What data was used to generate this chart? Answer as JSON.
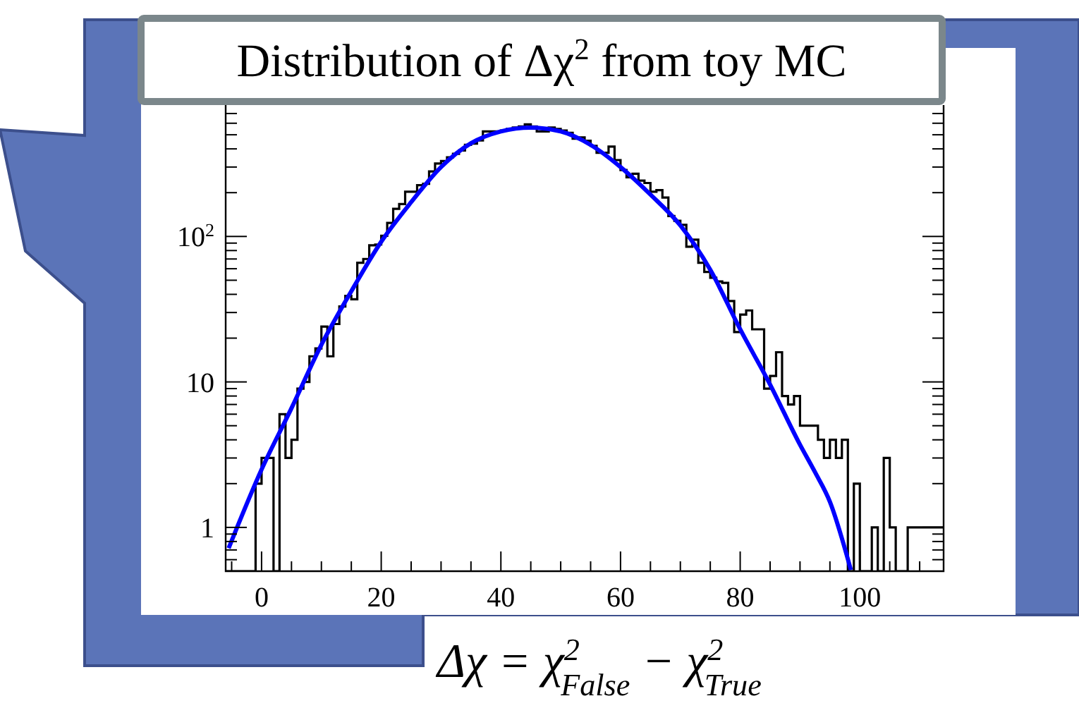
{
  "chart_data": {
    "type": "histogram",
    "title": "Distribution of Δχ$^{2}$ from toy MC",
    "annotations": [
      "Δχ = χ$^{2}$$_{False}$ − χ$^{2}$$_{True}$"
    ],
    "log": "y",
    "xlim": [
      -6,
      114
    ],
    "ylim": [
      0.5,
      800
    ],
    "xticks": [
      {
        "value": -5,
        "label": null
      },
      0,
      {
        "value": 5,
        "label": null
      },
      {
        "value": 10,
        "label": null
      },
      {
        "value": 15,
        "label": null
      },
      20,
      {
        "value": 25,
        "label": null
      },
      {
        "value": 30,
        "label": null
      },
      {
        "value": 35,
        "label": null
      },
      40,
      {
        "value": 45,
        "label": null
      },
      {
        "value": 50,
        "label": null
      },
      {
        "value": 55,
        "label": null
      },
      60,
      {
        "value": 65,
        "label": null
      },
      {
        "value": 70,
        "label": null
      },
      {
        "value": 75,
        "label": null
      },
      80,
      {
        "value": 85,
        "label": null
      },
      {
        "value": 90,
        "label": null
      },
      {
        "value": 95,
        "label": null
      },
      100,
      {
        "value": 105,
        "label": null
      },
      {
        "value": 110,
        "label": null
      }
    ],
    "yticks": [
      {
        "value": 0.6,
        "label": null
      },
      {
        "value": 0.7,
        "label": null
      },
      {
        "value": 0.8,
        "label": null
      },
      {
        "value": 0.9,
        "label": null
      },
      1,
      {
        "value": 2,
        "label": null
      },
      {
        "value": 3,
        "label": null
      },
      {
        "value": 4,
        "label": null
      },
      {
        "value": 5,
        "label": null
      },
      {
        "value": 6,
        "label": null
      },
      {
        "value": 7,
        "label": null
      },
      {
        "value": 8,
        "label": null
      },
      {
        "value": 9,
        "label": null
      },
      10,
      {
        "value": 20,
        "label": null
      },
      {
        "value": 30,
        "label": null
      },
      {
        "value": 40,
        "label": null
      },
      {
        "value": 50,
        "label": null
      },
      {
        "value": 60,
        "label": null
      },
      {
        "value": 70,
        "label": null
      },
      {
        "value": 80,
        "label": null
      },
      {
        "value": 90,
        "label": null
      },
      {
        "value": 100,
        "label": "10$^{2}$"
      },
      {
        "value": 200,
        "label": null
      },
      {
        "value": 300,
        "label": null
      },
      {
        "value": 400,
        "label": null
      },
      {
        "value": 500,
        "label": null
      },
      {
        "value": 600,
        "label": null
      },
      {
        "value": 700,
        "label": null
      }
    ],
    "bins": [
      -6,
      -5,
      -4,
      -3,
      -2,
      -1,
      0,
      1,
      2,
      3,
      4,
      5,
      6,
      7,
      8,
      9,
      10,
      11,
      12,
      13,
      14,
      15,
      16,
      17,
      18,
      19,
      20,
      21,
      22,
      23,
      24,
      25,
      26,
      27,
      28,
      29,
      30,
      31,
      32,
      33,
      34,
      35,
      36,
      37,
      38,
      39,
      40,
      41,
      42,
      43,
      44,
      45,
      46,
      47,
      48,
      49,
      50,
      51,
      52,
      53,
      54,
      55,
      56,
      57,
      58,
      59,
      60,
      61,
      62,
      63,
      64,
      65,
      66,
      67,
      68,
      69,
      70,
      71,
      72,
      73,
      74,
      75,
      76,
      77,
      78,
      79,
      80,
      81,
      82,
      83,
      84,
      85,
      86,
      87,
      88,
      89,
      90,
      91,
      92,
      93,
      94,
      95,
      96,
      97,
      98,
      99,
      100,
      101,
      102,
      103,
      104,
      105,
      106,
      107,
      108,
      109,
      110,
      111,
      112,
      113,
      114
    ],
    "series": [
      {
        "color": "#000000",
        "values": [
          null,
          null,
          null,
          null,
          null,
          2,
          3,
          3,
          null,
          6,
          3,
          4,
          9,
          10,
          15,
          17,
          24,
          15,
          25,
          33,
          39,
          37,
          66,
          70,
          87,
          88,
          101,
          124,
          155,
          167,
          203,
          203,
          225,
          230,
          280,
          317,
          330,
          350,
          370,
          390,
          426,
          435,
          457,
          527,
          527,
          527,
          535,
          548,
          560,
          570,
          590,
          570,
          527,
          527,
          560,
          548,
          535,
          516,
          470,
          480,
          455,
          420,
          376,
          376,
          415,
          335,
          286,
          255,
          270,
          242,
          233,
          203,
          208,
          185,
          138,
          128,
          120,
          85,
          95,
          66,
          57,
          52,
          49,
          48,
          36,
          22,
          29,
          31,
          23,
          23,
          9,
          11,
          16,
          8,
          7,
          8,
          5,
          5,
          5,
          4,
          3,
          4,
          3,
          4,
          null,
          2,
          null,
          null,
          1,
          null,
          3,
          1,
          null,
          null,
          1,
          1,
          1,
          1,
          1,
          1
        ]
      },
      {
        "type": "line",
        "color": "#0000ff",
        "x": [
          -5.5,
          0,
          5,
          10,
          15,
          20,
          25,
          30,
          35,
          40,
          45,
          50,
          55,
          60,
          65,
          70,
          75,
          80,
          85,
          90,
          92.5,
          95,
          98.5
        ],
        "values": [
          0.72,
          2.5,
          6.6,
          18,
          42,
          92,
          172,
          300,
          437,
          527,
          560,
          527,
          426,
          300,
          194,
          119,
          59,
          23,
          9.6,
          3.7,
          2.4,
          1.5,
          0.51
        ]
      }
    ]
  }
}
